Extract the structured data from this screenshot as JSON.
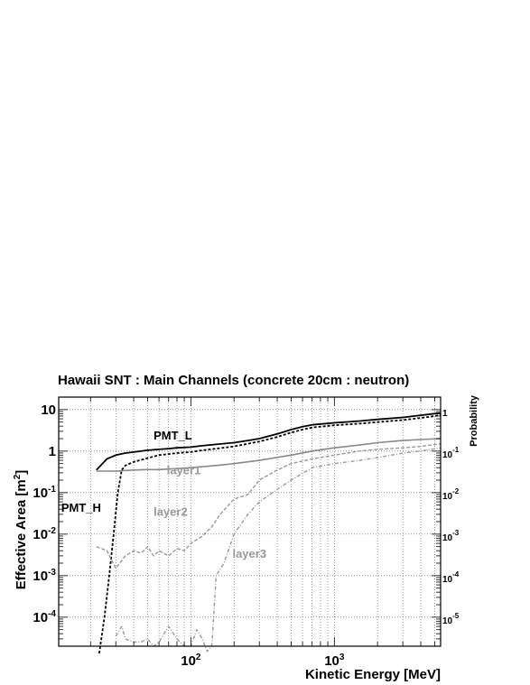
{
  "chart_data": {
    "type": "line",
    "title": "Hawaii SNT : Main Channels (concrete 20cm : neutron)",
    "xlabel": "Kinetic Energy [MeV]",
    "ylabel": "Effective Area [m",
    "ylabel_sup": "2",
    "ylabel_close": "]",
    "y2label": "Probability",
    "xscale": "log",
    "yscale": "log",
    "xlim": [
      12,
      5500
    ],
    "ylim": [
      2e-05,
      20
    ],
    "y2lim": [
      2e-06,
      2
    ],
    "grid": true,
    "x_tick_labels": [
      {
        "value": 100,
        "base": "10",
        "exp": "2"
      },
      {
        "value": 1000,
        "base": "10",
        "exp": "3"
      }
    ],
    "y_tick_labels": [
      {
        "value": 10,
        "base": "10",
        "exp": ""
      },
      {
        "value": 1,
        "base": "1",
        "exp": ""
      },
      {
        "value": 0.1,
        "base": "10",
        "exp": "-1"
      },
      {
        "value": 0.01,
        "base": "10",
        "exp": "-2"
      },
      {
        "value": 0.001,
        "base": "10",
        "exp": "-3"
      },
      {
        "value": 0.0001,
        "base": "10",
        "exp": "-4"
      }
    ],
    "y2_tick_labels": [
      {
        "value": 1,
        "base": "1",
        "exp": ""
      },
      {
        "value": 0.1,
        "base": "10",
        "exp": "-1"
      },
      {
        "value": 0.01,
        "base": "10",
        "exp": "-2"
      },
      {
        "value": 0.001,
        "base": "10",
        "exp": "-3"
      },
      {
        "value": 0.0001,
        "base": "10",
        "exp": "-4"
      },
      {
        "value": 1e-05,
        "base": "10",
        "exp": "-5"
      }
    ],
    "annotations": [
      {
        "text": "PMT_L",
        "x": 55,
        "y": 1.9,
        "color": "#000000"
      },
      {
        "text": "PMT_H",
        "x": 12.5,
        "y": 0.035,
        "color": "#000000"
      },
      {
        "text": "layer1",
        "x": 68,
        "y": 0.28,
        "color": "#999999"
      },
      {
        "text": "layer2",
        "x": 55,
        "y": 0.028,
        "color": "#999999"
      },
      {
        "text": "layer3",
        "x": 195,
        "y": 0.0027,
        "color": "#999999"
      }
    ],
    "series": [
      {
        "name": "PMT_L",
        "axis": "left",
        "color": "#000000",
        "dash": "solid",
        "width": 1.8,
        "x": [
          22,
          26,
          30,
          35,
          40,
          50,
          60,
          70,
          80,
          100,
          120,
          150,
          200,
          250,
          300,
          400,
          500,
          600,
          700,
          1000,
          1500,
          2000,
          3000,
          4000,
          5000,
          5500
        ],
        "y": [
          0.35,
          0.65,
          0.8,
          0.9,
          0.95,
          1.05,
          1.1,
          1.15,
          1.2,
          1.25,
          1.35,
          1.45,
          1.6,
          1.8,
          2.0,
          2.6,
          3.3,
          3.9,
          4.3,
          4.8,
          5.3,
          5.8,
          6.5,
          7.3,
          8.0,
          8.2
        ]
      },
      {
        "name": "PMT_H",
        "axis": "left",
        "color": "#000000",
        "dash": "3,2",
        "width": 1.8,
        "x": [
          23,
          25,
          27,
          29,
          31,
          33,
          35,
          40,
          50,
          60,
          70,
          80,
          100,
          120,
          150,
          200,
          250,
          300,
          400,
          500,
          600,
          700,
          1000,
          1500,
          2000,
          3000,
          4000,
          5000,
          5500
        ],
        "y": [
          1e-05,
          0.0001,
          0.001,
          0.01,
          0.1,
          0.35,
          0.45,
          0.55,
          0.68,
          0.8,
          0.85,
          0.9,
          0.95,
          1.05,
          1.15,
          1.3,
          1.5,
          1.7,
          2.2,
          2.8,
          3.3,
          3.7,
          4.2,
          4.6,
          5.0,
          5.6,
          6.3,
          7.0,
          7.4
        ]
      },
      {
        "name": "layer1",
        "axis": "right",
        "color": "#888888",
        "dash": "solid",
        "width": 1.6,
        "x": [
          22,
          30,
          40,
          50,
          60,
          80,
          100,
          150,
          200,
          300,
          500,
          700,
          1000,
          1500,
          2000,
          3000,
          4000,
          5500
        ],
        "y": [
          0.033,
          0.033,
          0.035,
          0.036,
          0.036,
          0.038,
          0.04,
          0.045,
          0.05,
          0.06,
          0.08,
          0.1,
          0.12,
          0.14,
          0.16,
          0.18,
          0.19,
          0.2
        ]
      },
      {
        "name": "layer2",
        "axis": "right",
        "color": "#999999",
        "dash": "4,2",
        "width": 1.4,
        "x": [
          22,
          26,
          30,
          35,
          40,
          45,
          50,
          55,
          60,
          70,
          80,
          90,
          100,
          120,
          140,
          160,
          200,
          250,
          300,
          400,
          500,
          700,
          1000,
          1500,
          2000,
          3000,
          4000,
          5500
        ],
        "y": [
          0.0005,
          0.0004,
          0.00015,
          0.0003,
          0.0004,
          0.00035,
          0.0005,
          0.0003,
          0.0004,
          0.0003,
          0.00045,
          0.0004,
          0.0006,
          0.0009,
          0.0015,
          0.003,
          0.007,
          0.009,
          0.02,
          0.035,
          0.05,
          0.065,
          0.08,
          0.1,
          0.11,
          0.12,
          0.13,
          0.15
        ]
      },
      {
        "name": "layer3",
        "axis": "right",
        "color": "#999999",
        "dash": "4,2,1,2",
        "width": 1.4,
        "x": [
          30,
          33,
          35,
          40,
          45,
          50,
          55,
          60,
          70,
          80,
          90,
          100,
          110,
          120,
          130,
          140,
          150,
          170,
          200,
          250,
          300,
          400,
          500,
          700,
          1000,
          1500,
          2000,
          3000,
          4000,
          5500
        ],
        "y": [
          3.5e-06,
          6e-06,
          3e-06,
          2.5e-06,
          2.5e-06,
          3e-06,
          2e-06,
          2.5e-06,
          6e-06,
          3e-06,
          2e-06,
          2e-06,
          5e-06,
          3e-06,
          1.5e-06,
          2e-06,
          0.0001,
          0.0002,
          0.001,
          0.003,
          0.006,
          0.012,
          0.02,
          0.04,
          0.05,
          0.06,
          0.07,
          0.09,
          0.1,
          0.12
        ]
      }
    ]
  }
}
